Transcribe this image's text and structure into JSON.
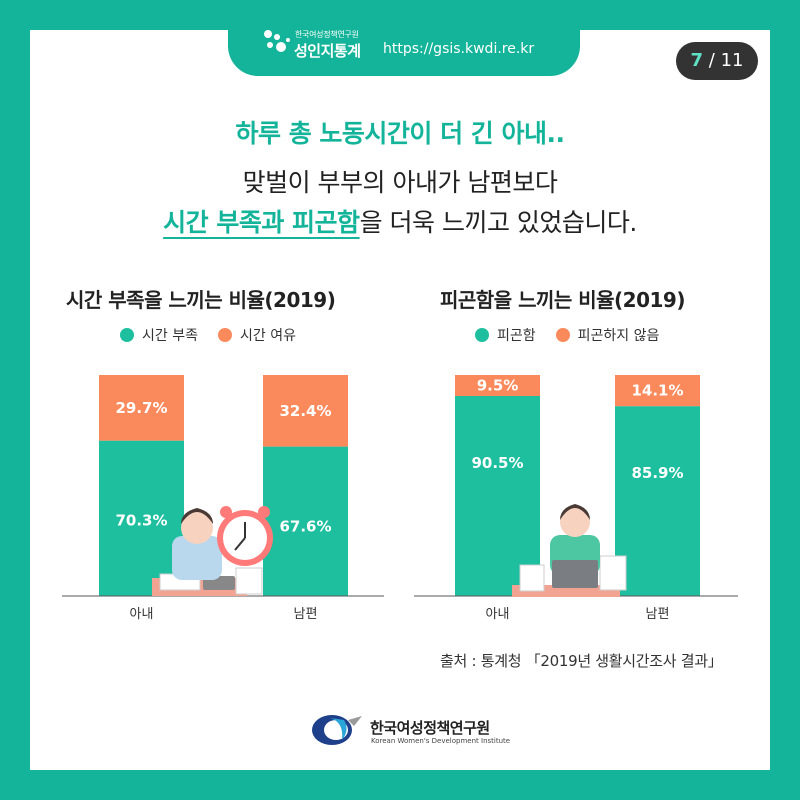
{
  "header": {
    "brand_small": "한국여성정책연구원",
    "brand_big": "성인지통계",
    "url": "https://gsis.kwdi.re.kr",
    "page_current": "7",
    "page_total": "/ 11"
  },
  "headline": {
    "line1": "하루 총 노동시간이 더 긴 아내..",
    "line2": "맞벌이 부부의 아내가 남편보다",
    "line3_em": "시간 부족과 피곤함",
    "line3_rest": "을 더욱 느끼고 있었습니다."
  },
  "colors": {
    "teal": "#1dbf9f",
    "orange": "#fa8a5c",
    "accent": "#14b49a"
  },
  "chart_data": [
    {
      "type": "bar",
      "stacked": true,
      "title": "시간 부족을 느끼는 비율(2019)",
      "categories": [
        "아내",
        "남편"
      ],
      "series": [
        {
          "name": "시간 부족",
          "values": [
            70.3,
            67.6
          ],
          "labels": [
            "70.3%",
            "67.6%"
          ]
        },
        {
          "name": "시간 여유",
          "values": [
            29.7,
            32.4
          ],
          "labels": [
            "29.7%",
            "32.4%"
          ]
        }
      ],
      "ylim": [
        0,
        100
      ],
      "legend": "top"
    },
    {
      "type": "bar",
      "stacked": true,
      "title": "피곤함을 느끼는 비율(2019)",
      "categories": [
        "아내",
        "남편"
      ],
      "series": [
        {
          "name": "피곤함",
          "values": [
            90.5,
            85.9
          ],
          "labels": [
            "90.5%",
            "85.9%"
          ]
        },
        {
          "name": "피곤하지 않음",
          "values": [
            9.5,
            14.1
          ],
          "labels": [
            "9.5%",
            "14.1%"
          ]
        }
      ],
      "ylim": [
        0,
        100
      ],
      "legend": "top"
    }
  ],
  "source": "출처 : 통계청 「2019년 생활시간조사 결과」",
  "footer": {
    "name": "한국여성정책연구원",
    "name_en": "Korean Women's Development Institute"
  }
}
